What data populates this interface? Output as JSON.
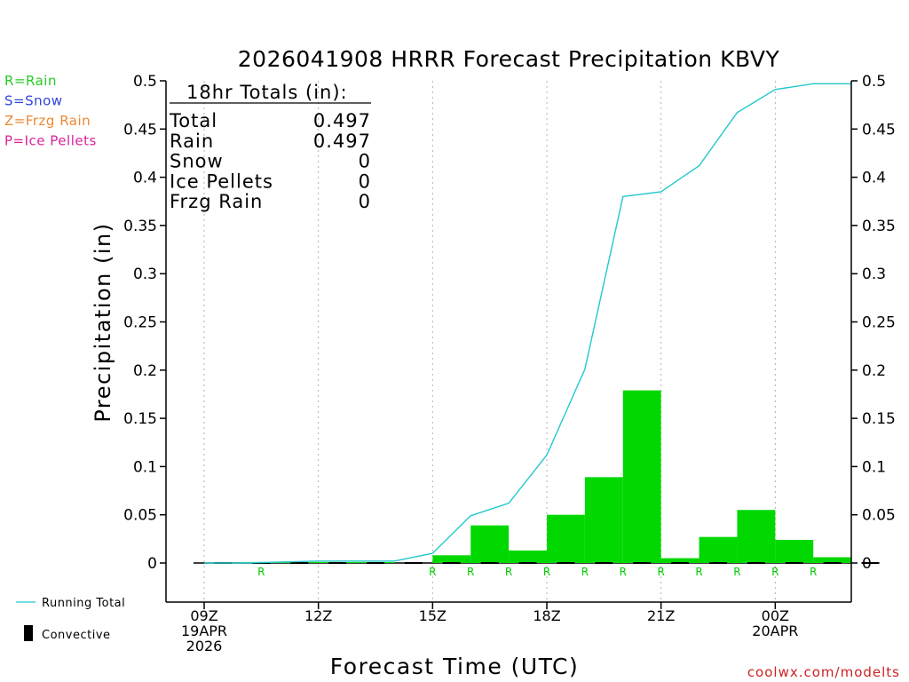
{
  "chart_data": {
    "type": "bar",
    "title": "2026041908 HRRR Forecast Precipitation KBVY",
    "xlabel": "Forecast Time (UTC)",
    "ylabel": "Precipitation (in)",
    "ylim": [
      -0.04,
      0.5
    ],
    "y_ticks": [
      {
        "value": 0.5,
        "label": "0.5"
      },
      {
        "value": 0.45,
        "label": "0.45"
      },
      {
        "value": 0.4,
        "label": "0.4"
      },
      {
        "value": 0.35,
        "label": "0.35"
      },
      {
        "value": 0.3,
        "label": "0.3"
      },
      {
        "value": 0.25,
        "label": "0.25"
      },
      {
        "value": 0.2,
        "label": "0.2"
      },
      {
        "value": 0.15,
        "label": "0.15"
      },
      {
        "value": 0.1,
        "label": "0.1"
      },
      {
        "value": 0.05,
        "label": "0.05"
      },
      {
        "value": 0,
        "label": "0"
      }
    ],
    "x_range_hours": [
      -0.25,
      17.75
    ],
    "x_ticks": [
      {
        "hour": 0,
        "lines": [
          "09Z",
          "19APR",
          "2026"
        ]
      },
      {
        "hour": 3,
        "lines": [
          "12Z"
        ]
      },
      {
        "hour": 6,
        "lines": [
          "15Z"
        ]
      },
      {
        "hour": 9,
        "lines": [
          "18Z"
        ]
      },
      {
        "hour": 12,
        "lines": [
          "21Z"
        ]
      },
      {
        "hour": 15,
        "lines": [
          "00Z",
          "20APR"
        ]
      }
    ],
    "hourly_bars": {
      "name": "Hourly Precipitation",
      "hours_end": [
        1,
        2,
        3,
        4,
        5,
        6,
        7,
        8,
        9,
        10,
        11,
        12,
        13,
        14,
        15,
        16,
        17,
        18
      ],
      "values": [
        0,
        0.001,
        0.001,
        0.001,
        0.001,
        0,
        0.008,
        0.039,
        0.013,
        0.05,
        0.089,
        0.179,
        0.005,
        0.027,
        0.055,
        0.024,
        0.006,
        0
      ]
    },
    "running_total": {
      "name": "Running Total",
      "hours": [
        0,
        1,
        2,
        3,
        4,
        5,
        6,
        7,
        8,
        9,
        10,
        11,
        12,
        13,
        14,
        15,
        16,
        17
      ],
      "values": [
        0,
        0,
        0.001,
        0.002,
        0.002,
        0.002,
        0.01,
        0.049,
        0.062,
        0.112,
        0.201,
        0.38,
        0.385,
        0.412,
        0.467,
        0.491,
        0.497,
        0.497
      ]
    },
    "ptype_markers": {
      "hours": [
        2,
        6,
        7,
        8,
        9,
        10,
        11,
        12,
        13,
        14,
        15,
        16
      ],
      "label": "R",
      "color": "#00cc00"
    },
    "totals_box": {
      "heading": "18hr Totals (in):",
      "rows": [
        {
          "label": "Total",
          "value": "0.497"
        },
        {
          "label": "Rain",
          "value": "0.497"
        },
        {
          "label": "Snow",
          "value": "0"
        },
        {
          "label": "Ice Pellets",
          "value": "0"
        },
        {
          "label": "Frzg Rain",
          "value": "0"
        }
      ]
    },
    "ptype_legend": [
      {
        "text": "R=Rain",
        "color": "#22cc22"
      },
      {
        "text": "S=Snow",
        "color": "#3344dd"
      },
      {
        "text": "Z=Frzg Rain",
        "color": "#ee8833"
      },
      {
        "text": "P=Ice Pellets",
        "color": "#dd2299"
      }
    ],
    "series_legend": {
      "running_total": "Running Total",
      "convective": "Convective"
    },
    "credit": "coolwx.com/modelts",
    "colors": {
      "bar": "#00d800",
      "line": "#22c8cc",
      "grid": "#b0b0b0",
      "axis": "#000000",
      "credit": "#cc2222"
    }
  }
}
